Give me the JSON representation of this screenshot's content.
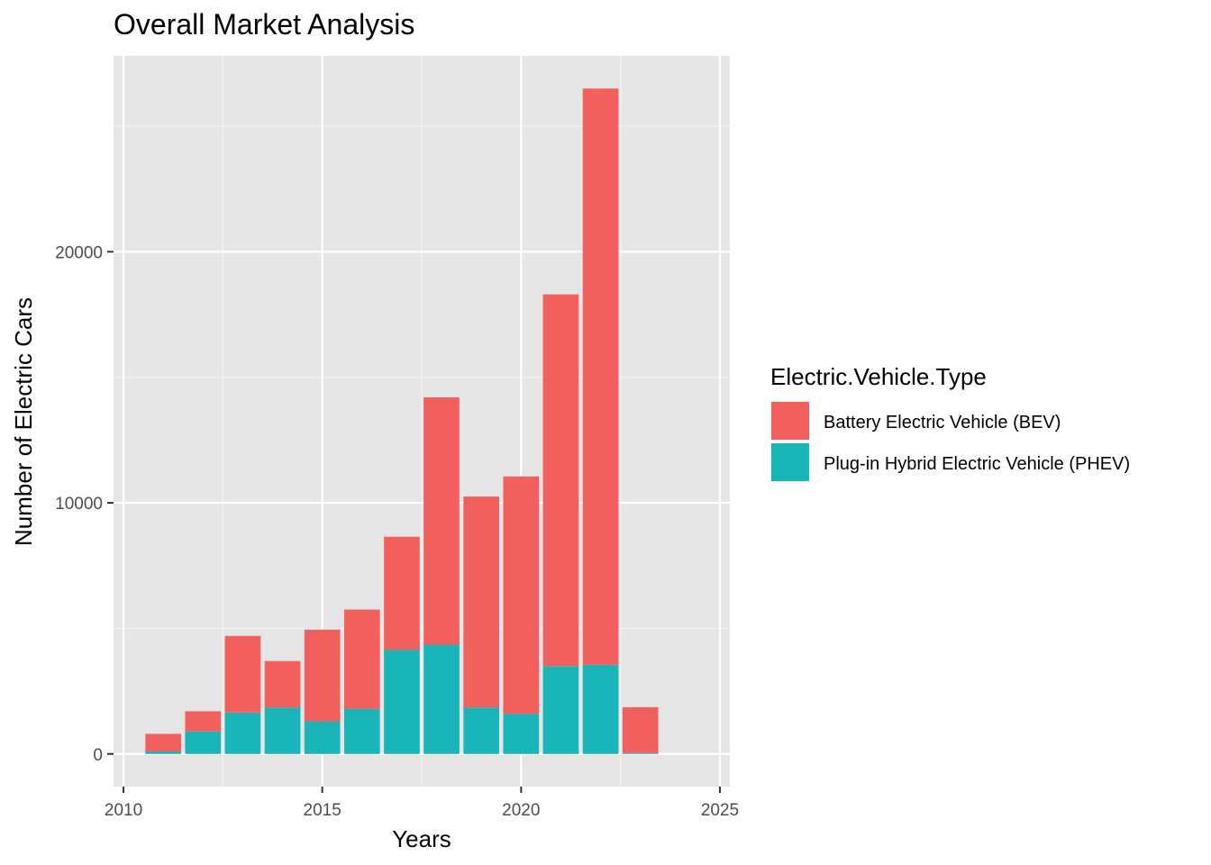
{
  "chart_data": {
    "type": "bar",
    "stacked": true,
    "title": "Overall Market Analysis",
    "xlabel": "Years",
    "ylabel": "Number of Electric Cars",
    "xlim": [
      2009.75,
      2025.25
    ],
    "ylim": [
      -1300,
      27800
    ],
    "x_ticks": [
      2010,
      2015,
      2020,
      2025
    ],
    "y_ticks": [
      0,
      10000,
      20000
    ],
    "grid": true,
    "legend": {
      "title": "Electric.Vehicle.Type",
      "placement": "right"
    },
    "x": [
      2011,
      2012,
      2013,
      2014,
      2015,
      2016,
      2017,
      2018,
      2019,
      2020,
      2021,
      2022,
      2023
    ],
    "series": [
      {
        "name": "Plug-in Hybrid Electric Vehicle (PHEV)",
        "color": "#19b5b9",
        "values": [
          100,
          900,
          1650,
          1850,
          1300,
          1800,
          4150,
          4350,
          1850,
          1600,
          3500,
          3550,
          40
        ]
      },
      {
        "name": "Battery Electric Vehicle (BEV)",
        "color": "#f2605d",
        "values": [
          700,
          800,
          3050,
          1850,
          3650,
          3950,
          4500,
          9850,
          8400,
          9450,
          14800,
          22950,
          1820
        ]
      }
    ]
  }
}
